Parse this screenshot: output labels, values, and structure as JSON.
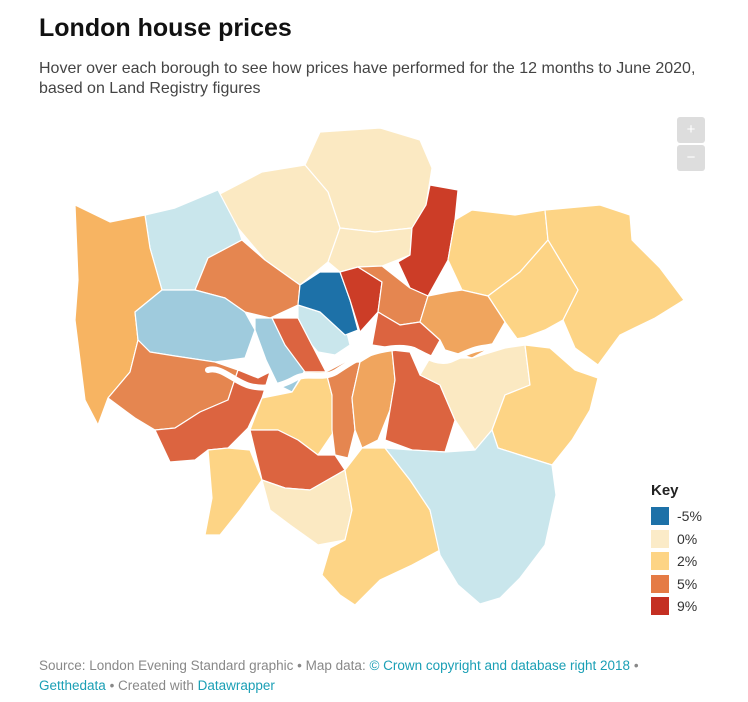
{
  "header": {
    "title": "London house prices",
    "subtitle": "Hover over each borough to see how prices have performed for the 12 months to June 2020, based on Land Registry figures"
  },
  "zoom": {
    "in_label": "+",
    "out_label": "−"
  },
  "legend": {
    "title": "Key",
    "items": [
      {
        "label": "-5%",
        "color": "#1d71a8"
      },
      {
        "label": "0%",
        "color": "#fbebc8"
      },
      {
        "label": "2%",
        "color": "#fdd485"
      },
      {
        "label": "5%",
        "color": "#e57b45"
      },
      {
        "label": "9%",
        "color": "#c42f22"
      }
    ]
  },
  "map_colors": {
    "dark_red": "#cc3d27",
    "red_orange": "#dc6440",
    "orange": "#e58650",
    "light_orange": "#f0a55e",
    "amber": "#f7b462",
    "yellow": "#fdd485",
    "cream": "#fbe9c2",
    "pale_blue": "#c9e6ec",
    "light_blue": "#9fcbdd",
    "blue": "#1d71a8",
    "river": "#ffffff"
  },
  "footer": {
    "source": "Source: London Evening Standard graphic • Map data: ",
    "copyright_link": "© Crown copyright and database right 2018",
    "sep1": " • ",
    "getthedata_link": "Getthedata",
    "created": " • Created with ",
    "datawrapper_link": "Datawrapper"
  }
}
